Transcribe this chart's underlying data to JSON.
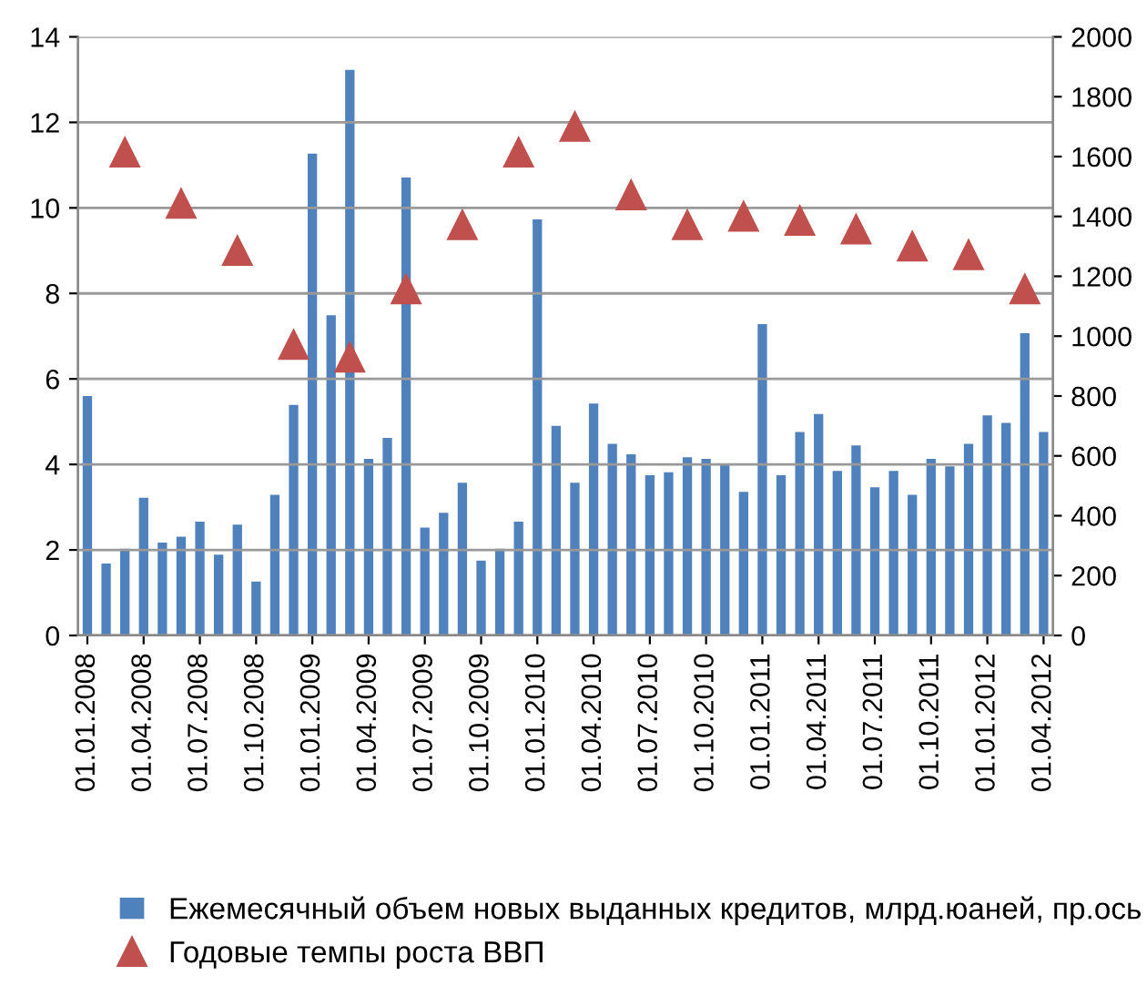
{
  "chart_data": {
    "type": "bar",
    "categories": [
      "01.01.2008",
      null,
      null,
      "01.04.2008",
      null,
      null,
      "01.07.2008",
      null,
      null,
      "01.10.2008",
      null,
      null,
      "01.01.2009",
      null,
      null,
      "01.04.2009",
      null,
      null,
      "01.07.2009",
      null,
      null,
      "01.10.2009",
      null,
      null,
      "01.01.2010",
      null,
      null,
      "01.04.2010",
      null,
      null,
      "01.07.2010",
      null,
      null,
      "01.10.2010",
      null,
      null,
      "01.01.2011",
      null,
      null,
      "01.04.2011",
      null,
      null,
      "01.07.2011",
      null,
      null,
      "01.10.2011",
      null,
      null,
      "01.01.2012",
      null,
      null,
      "01.04.2012"
    ],
    "series": [
      {
        "name": "Ежемесячный объем новых выданных кредитов, млрд.юаней, пр.ось",
        "axis": "y2",
        "color": "#4f81bd",
        "values": [
          800,
          240,
          290,
          460,
          310,
          330,
          380,
          270,
          370,
          180,
          470,
          770,
          1610,
          1070,
          1890,
          590,
          660,
          1530,
          360,
          410,
          510,
          250,
          290,
          380,
          1390,
          700,
          510,
          775,
          640,
          605,
          535,
          545,
          595,
          590,
          570,
          480,
          1040,
          535,
          680,
          740,
          550,
          635,
          495,
          550,
          470,
          590,
          565,
          640,
          735,
          710,
          1010,
          680
        ]
      },
      {
        "name": "Годовые темпы роста ВВП",
        "type": "scatter",
        "axis": "y",
        "color": "#c0504d",
        "marker": "triangle",
        "values": [
          null,
          null,
          11.3,
          null,
          null,
          10.1,
          null,
          null,
          9.0,
          null,
          null,
          6.8,
          null,
          null,
          6.5,
          null,
          null,
          8.1,
          null,
          null,
          9.6,
          null,
          null,
          11.3,
          null,
          null,
          11.9,
          null,
          null,
          10.3,
          null,
          null,
          9.6,
          null,
          null,
          9.8,
          null,
          null,
          9.7,
          null,
          null,
          9.5,
          null,
          null,
          9.1,
          null,
          null,
          8.9,
          null,
          null,
          8.1,
          null
        ]
      }
    ],
    "ylim": [
      0,
      14
    ],
    "yticks": [
      0,
      2,
      4,
      6,
      8,
      10,
      12,
      14
    ],
    "y2lim": [
      0,
      2000
    ],
    "y2ticks": [
      0,
      200,
      400,
      600,
      800,
      1000,
      1200,
      1400,
      1600,
      1800,
      2000
    ],
    "grid": "y",
    "legend": "bottom"
  }
}
